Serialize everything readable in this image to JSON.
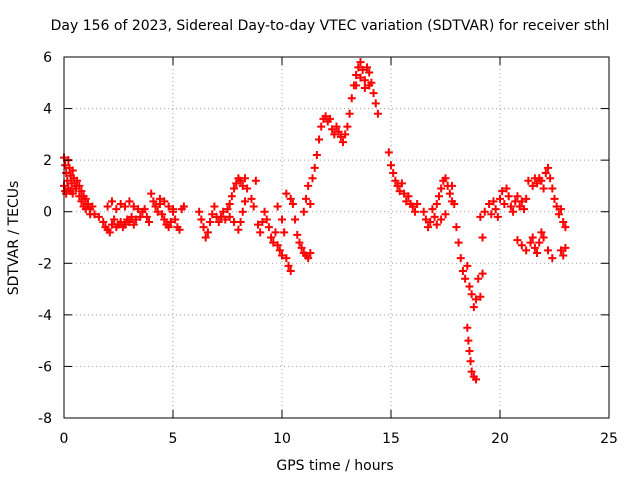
{
  "chart_data": {
    "type": "scatter",
    "title": "Day 156 of 2023, Sidereal Day-to-day VTEC variation (SDTVAR) for receiver sthl",
    "xlabel": "GPS time / hours",
    "ylabel": "SDTVAR / TECUs",
    "xlim": [
      0,
      25
    ],
    "ylim": [
      -8,
      6
    ],
    "xticks": [
      0,
      5,
      10,
      15,
      20,
      25
    ],
    "yticks": [
      -8,
      -6,
      -4,
      -2,
      0,
      2,
      4,
      6
    ],
    "grid": true,
    "marker": "+",
    "series_color": "#ff0000",
    "series": [
      {
        "name": "SDTVAR",
        "points": [
          [
            0.0,
            2.1
          ],
          [
            0.05,
            1.8
          ],
          [
            0.1,
            1.5
          ],
          [
            0.15,
            1.2
          ],
          [
            0.2,
            2.0
          ],
          [
            0.25,
            1.7
          ],
          [
            0.3,
            1.4
          ],
          [
            0.35,
            1.1
          ],
          [
            0.4,
            1.6
          ],
          [
            0.45,
            1.3
          ],
          [
            0.5,
            1.0
          ],
          [
            0.55,
            0.9
          ],
          [
            0.0,
            1.0
          ],
          [
            0.05,
            0.8
          ],
          [
            0.1,
            0.7
          ],
          [
            0.2,
            0.9
          ],
          [
            0.3,
            0.8
          ],
          [
            0.4,
            0.7
          ],
          [
            0.6,
            1.2
          ],
          [
            0.7,
            1.0
          ],
          [
            0.8,
            0.8
          ],
          [
            0.9,
            0.6
          ],
          [
            1.0,
            0.5
          ],
          [
            1.1,
            0.3
          ],
          [
            1.2,
            0.1
          ],
          [
            1.3,
            0.2
          ],
          [
            1.4,
            -0.1
          ],
          [
            1.2,
            -0.1
          ],
          [
            1.0,
            0.1
          ],
          [
            0.8,
            0.4
          ],
          [
            0.7,
            0.6
          ],
          [
            0.9,
            0.2
          ],
          [
            1.6,
            -0.2
          ],
          [
            1.8,
            -0.4
          ],
          [
            1.9,
            -0.6
          ],
          [
            2.0,
            -0.7
          ],
          [
            2.1,
            -0.8
          ],
          [
            2.2,
            -0.5
          ],
          [
            2.3,
            -0.3
          ],
          [
            2.4,
            -0.6
          ],
          [
            2.5,
            -0.5
          ],
          [
            2.6,
            -0.4
          ],
          [
            2.7,
            -0.6
          ],
          [
            2.8,
            -0.5
          ],
          [
            2.9,
            -0.3
          ],
          [
            3.0,
            -0.4
          ],
          [
            3.1,
            -0.2
          ],
          [
            3.2,
            -0.5
          ],
          [
            3.3,
            -0.3
          ],
          [
            2.0,
            0.2
          ],
          [
            2.2,
            0.4
          ],
          [
            2.4,
            0.1
          ],
          [
            2.6,
            0.3
          ],
          [
            2.8,
            0.2
          ],
          [
            3.0,
            0.4
          ],
          [
            3.2,
            0.2
          ],
          [
            3.4,
            0.1
          ],
          [
            3.5,
            -0.2
          ],
          [
            3.6,
            0.0
          ],
          [
            3.7,
            0.1
          ],
          [
            3.8,
            -0.2
          ],
          [
            3.9,
            -0.4
          ],
          [
            4.0,
            0.7
          ],
          [
            4.1,
            0.4
          ],
          [
            4.2,
            0.2
          ],
          [
            4.3,
            0.0
          ],
          [
            4.4,
            0.3
          ],
          [
            4.5,
            -0.1
          ],
          [
            4.6,
            -0.3
          ],
          [
            4.7,
            -0.5
          ],
          [
            4.8,
            -0.6
          ],
          [
            4.9,
            -0.4
          ],
          [
            5.0,
            0.0
          ],
          [
            5.1,
            -0.3
          ],
          [
            5.2,
            -0.6
          ],
          [
            5.3,
            -0.7
          ],
          [
            5.4,
            0.1
          ],
          [
            5.5,
            0.2
          ],
          [
            4.4,
            0.5
          ],
          [
            4.6,
            0.4
          ],
          [
            4.8,
            0.2
          ],
          [
            5.0,
            0.1
          ],
          [
            6.2,
            0.0
          ],
          [
            6.3,
            -0.3
          ],
          [
            6.4,
            -0.6
          ],
          [
            6.5,
            -1.0
          ],
          [
            6.6,
            -0.8
          ],
          [
            6.7,
            -0.4
          ],
          [
            6.8,
            -0.1
          ],
          [
            6.9,
            0.2
          ],
          [
            7.0,
            -0.2
          ],
          [
            7.1,
            -0.4
          ],
          [
            7.2,
            -0.2
          ],
          [
            7.3,
            0.0
          ],
          [
            7.4,
            -0.3
          ],
          [
            7.5,
            0.1
          ],
          [
            7.6,
            0.3
          ],
          [
            7.7,
            0.6
          ],
          [
            7.8,
            0.9
          ],
          [
            7.9,
            1.1
          ],
          [
            8.0,
            1.3
          ],
          [
            8.1,
            1.2
          ],
          [
            8.2,
            1.0
          ],
          [
            8.3,
            1.3
          ],
          [
            8.4,
            0.9
          ],
          [
            7.6,
            -0.2
          ],
          [
            7.8,
            -0.4
          ],
          [
            8.0,
            -0.7
          ],
          [
            8.1,
            -0.4
          ],
          [
            8.2,
            0.0
          ],
          [
            8.3,
            0.4
          ],
          [
            8.6,
            0.5
          ],
          [
            8.7,
            0.2
          ],
          [
            8.8,
            1.2
          ],
          [
            8.9,
            -0.5
          ],
          [
            9.0,
            -0.8
          ],
          [
            9.1,
            -0.4
          ],
          [
            9.2,
            0.0
          ],
          [
            9.3,
            -0.3
          ],
          [
            9.4,
            -0.6
          ],
          [
            9.5,
            -1.0
          ],
          [
            9.6,
            -1.2
          ],
          [
            9.7,
            -0.8
          ],
          [
            9.8,
            -1.3
          ],
          [
            9.9,
            -1.5
          ],
          [
            10.0,
            -1.7
          ],
          [
            10.1,
            -0.8
          ],
          [
            10.2,
            -1.8
          ],
          [
            10.3,
            -2.1
          ],
          [
            10.4,
            -2.3
          ],
          [
            9.8,
            0.2
          ],
          [
            10.0,
            -0.3
          ],
          [
            10.2,
            0.7
          ],
          [
            10.4,
            0.5
          ],
          [
            10.5,
            0.3
          ],
          [
            10.6,
            -0.3
          ],
          [
            10.7,
            -0.9
          ],
          [
            10.8,
            -1.2
          ],
          [
            10.9,
            -1.4
          ],
          [
            11.0,
            -1.6
          ],
          [
            11.1,
            -1.7
          ],
          [
            11.2,
            -1.8
          ],
          [
            11.3,
            -1.6
          ],
          [
            11.0,
            0.0
          ],
          [
            11.1,
            0.5
          ],
          [
            11.2,
            1.0
          ],
          [
            11.3,
            0.3
          ],
          [
            11.4,
            1.3
          ],
          [
            11.5,
            1.7
          ],
          [
            11.6,
            2.2
          ],
          [
            11.7,
            2.8
          ],
          [
            11.8,
            3.3
          ],
          [
            11.9,
            3.6
          ],
          [
            12.0,
            3.7
          ],
          [
            12.1,
            3.5
          ],
          [
            12.2,
            3.6
          ],
          [
            12.3,
            3.2
          ],
          [
            12.4,
            3.0
          ],
          [
            12.5,
            3.3
          ],
          [
            12.6,
            3.1
          ],
          [
            12.7,
            2.9
          ],
          [
            12.8,
            2.7
          ],
          [
            12.9,
            3.0
          ],
          [
            13.0,
            3.3
          ],
          [
            13.1,
            3.8
          ],
          [
            13.2,
            4.4
          ],
          [
            13.3,
            4.9
          ],
          [
            13.4,
            5.3
          ],
          [
            13.5,
            5.6
          ],
          [
            13.6,
            5.8
          ],
          [
            13.7,
            5.5
          ],
          [
            13.8,
            5.1
          ],
          [
            13.9,
            5.6
          ],
          [
            14.0,
            5.4
          ],
          [
            14.1,
            5.0
          ],
          [
            14.2,
            4.6
          ],
          [
            14.3,
            4.2
          ],
          [
            14.4,
            3.8
          ],
          [
            13.4,
            4.9
          ],
          [
            13.6,
            5.2
          ],
          [
            13.8,
            4.8
          ],
          [
            14.0,
            4.9
          ],
          [
            14.9,
            2.3
          ],
          [
            15.0,
            1.8
          ],
          [
            15.1,
            1.5
          ],
          [
            15.2,
            1.2
          ],
          [
            15.3,
            1.0
          ],
          [
            15.4,
            0.8
          ],
          [
            15.5,
            1.1
          ],
          [
            15.6,
            0.7
          ],
          [
            15.7,
            0.4
          ],
          [
            15.8,
            0.6
          ],
          [
            15.9,
            0.3
          ],
          [
            16.0,
            0.2
          ],
          [
            16.1,
            0.0
          ],
          [
            16.2,
            0.3
          ],
          [
            16.5,
            0.0
          ],
          [
            16.6,
            -0.3
          ],
          [
            16.7,
            -0.6
          ],
          [
            16.8,
            -0.4
          ],
          [
            16.9,
            0.1
          ],
          [
            17.0,
            -0.2
          ],
          [
            17.1,
            0.3
          ],
          [
            17.2,
            0.6
          ],
          [
            17.3,
            0.9
          ],
          [
            17.4,
            1.2
          ],
          [
            17.5,
            1.3
          ],
          [
            17.6,
            1.0
          ],
          [
            17.7,
            0.7
          ],
          [
            17.8,
            0.4
          ],
          [
            17.1,
            -0.5
          ],
          [
            17.3,
            -0.3
          ],
          [
            17.5,
            -0.1
          ],
          [
            17.8,
            1.0
          ],
          [
            17.9,
            0.3
          ],
          [
            18.0,
            -0.6
          ],
          [
            18.1,
            -1.2
          ],
          [
            18.2,
            -1.8
          ],
          [
            18.3,
            -2.3
          ],
          [
            18.4,
            -2.6
          ],
          [
            18.5,
            -2.1
          ],
          [
            18.6,
            -2.9
          ],
          [
            18.7,
            -3.2
          ],
          [
            18.8,
            -3.7
          ],
          [
            18.9,
            -3.4
          ],
          [
            19.0,
            -2.6
          ],
          [
            19.1,
            -3.3
          ],
          [
            19.2,
            -2.4
          ],
          [
            18.5,
            -4.5
          ],
          [
            18.55,
            -5.0
          ],
          [
            18.6,
            -5.4
          ],
          [
            18.65,
            -5.8
          ],
          [
            18.7,
            -6.2
          ],
          [
            18.8,
            -6.4
          ],
          [
            18.9,
            -6.5
          ],
          [
            19.1,
            -0.2
          ],
          [
            19.2,
            -1.0
          ],
          [
            19.3,
            0.0
          ],
          [
            19.5,
            0.3
          ],
          [
            19.6,
            -0.1
          ],
          [
            19.7,
            0.4
          ],
          [
            19.8,
            0.1
          ],
          [
            19.9,
            -0.2
          ],
          [
            20.0,
            0.5
          ],
          [
            20.1,
            0.8
          ],
          [
            20.2,
            0.3
          ],
          [
            20.3,
            0.9
          ],
          [
            20.4,
            0.6
          ],
          [
            20.5,
            0.2
          ],
          [
            20.6,
            0.0
          ],
          [
            20.7,
            0.4
          ],
          [
            20.8,
            0.6
          ],
          [
            20.9,
            0.2
          ],
          [
            21.0,
            0.4
          ],
          [
            21.1,
            0.1
          ],
          [
            21.2,
            0.5
          ],
          [
            20.8,
            -1.1
          ],
          [
            21.0,
            -1.3
          ],
          [
            21.2,
            -1.5
          ],
          [
            21.4,
            -1.2
          ],
          [
            21.5,
            -1.0
          ],
          [
            21.6,
            -1.4
          ],
          [
            21.7,
            -1.6
          ],
          [
            21.8,
            -1.2
          ],
          [
            21.9,
            -0.8
          ],
          [
            22.0,
            -1.0
          ],
          [
            22.2,
            -1.5
          ],
          [
            22.4,
            -1.8
          ],
          [
            21.3,
            1.2
          ],
          [
            21.5,
            1.0
          ],
          [
            21.6,
            1.3
          ],
          [
            21.7,
            1.1
          ],
          [
            21.8,
            1.3
          ],
          [
            21.9,
            1.2
          ],
          [
            22.0,
            0.9
          ],
          [
            22.1,
            1.5
          ],
          [
            22.2,
            1.7
          ],
          [
            22.3,
            1.3
          ],
          [
            22.4,
            0.9
          ],
          [
            22.5,
            0.5
          ],
          [
            22.6,
            0.2
          ],
          [
            22.7,
            -0.1
          ],
          [
            22.8,
            0.1
          ],
          [
            22.9,
            -0.4
          ],
          [
            23.0,
            -0.6
          ],
          [
            22.8,
            -1.5
          ],
          [
            22.9,
            -1.7
          ],
          [
            23.0,
            -1.4
          ]
        ]
      }
    ]
  }
}
